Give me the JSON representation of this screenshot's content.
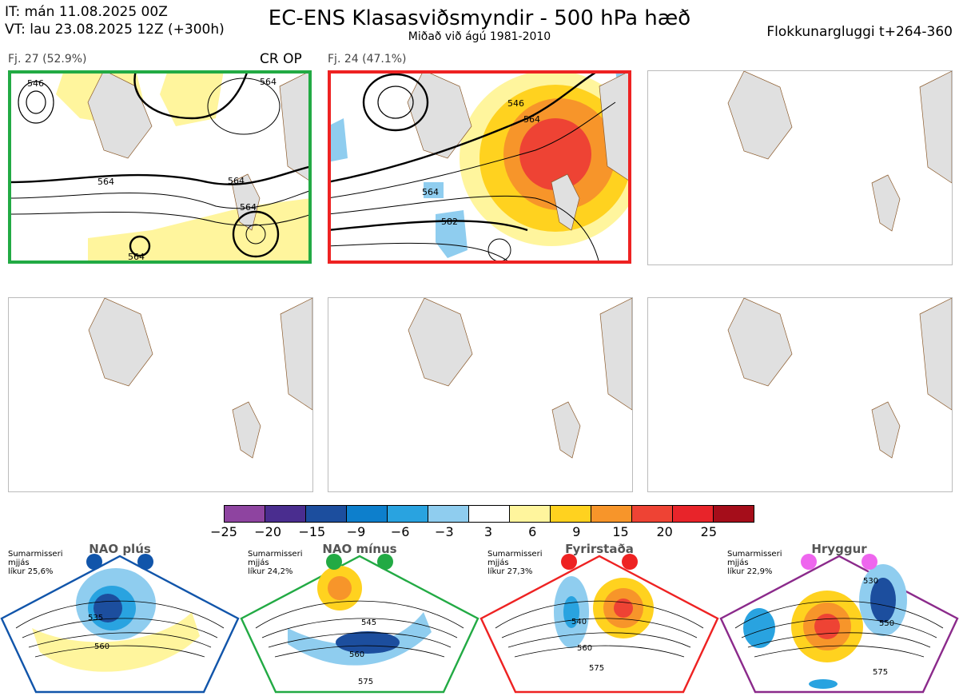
{
  "header": {
    "it_line": "IT: mán 11.08.2025 00Z",
    "vt_line": "VT: lau 23.08.2025 12Z  (+300h)",
    "title": "EC-ENS Klasasviðsmyndir - 500 hPa hæð",
    "subtitle": "Miðað við ágú 1981-2010",
    "window": "Flokkunargluggi t+264-360"
  },
  "clusters": [
    {
      "label": "Fj. 27 (52.9%)",
      "tag": "CR OP",
      "frame_color": "#22aa44",
      "contours": [
        "546",
        "564",
        "564",
        "564",
        "564",
        "564"
      ]
    },
    {
      "label": "Fj. 24 (47.1%)",
      "tag": "",
      "frame_color": "#ee2222",
      "contours": [
        "546",
        "564",
        "564",
        "582"
      ]
    }
  ],
  "colorbar": {
    "colors": [
      "#8e44a0",
      "#4a2d8f",
      "#1c4e9e",
      "#0d7fcc",
      "#29a3e0",
      "#8fcdef",
      "#ffffff",
      "#fff59d",
      "#ffd21f",
      "#f7952a",
      "#ee4334",
      "#e8242a",
      "#a50d1a"
    ],
    "ticks": [
      "−25",
      "−20",
      "−15",
      "−9",
      "−6",
      "−3",
      "3",
      "6",
      "9",
      "15",
      "20",
      "25"
    ]
  },
  "regimes": [
    {
      "name": "NAO plús",
      "season": "Sumarmisseri",
      "dist": "mjjás",
      "prob": "líkur 25,6%",
      "color": "#1155aa",
      "labels": [
        "535",
        "560"
      ]
    },
    {
      "name": "NAO mínus",
      "season": "Sumarmisseri",
      "dist": "mjjás",
      "prob": "líkur 24,2%",
      "color": "#22aa44",
      "labels": [
        "545",
        "560",
        "575"
      ]
    },
    {
      "name": "Fyrirstaða",
      "season": "Sumarmisseri",
      "dist": "mjjás",
      "prob": "líkur 27,3%",
      "color": "#ee2222",
      "labels": [
        "540",
        "560",
        "575"
      ]
    },
    {
      "name": "Hryggur",
      "season": "Sumarmisseri",
      "dist": "mjjás",
      "prob": "líkur 22,9%",
      "color": "#ee66ee",
      "labels": [
        "530",
        "550",
        "575"
      ]
    }
  ]
}
